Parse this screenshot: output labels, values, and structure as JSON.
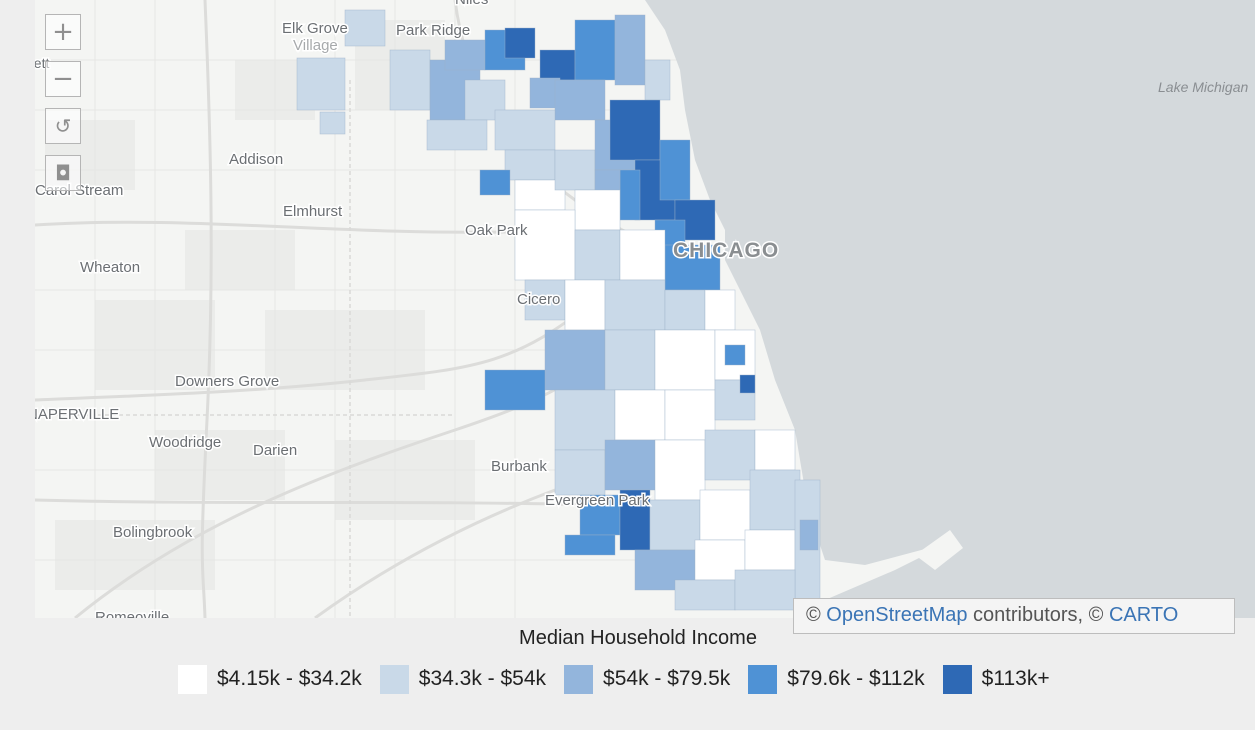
{
  "map": {
    "controls": {
      "zoom_in": "+",
      "zoom_out": "−",
      "reset": "↺",
      "locate": "◘"
    },
    "places": {
      "niles": "Niles",
      "elk_grove": "Elk Grove",
      "village": "Village",
      "park_ridge": "Park Ridge",
      "addison": "Addison",
      "carol_stream": "Carol Stream",
      "elmhurst": "Elmhurst",
      "oak_park": "Oak Park",
      "chicago": "CHICAGO",
      "wheaton": "Wheaton",
      "cicero": "Cicero",
      "downers_grove": "Downers Grove",
      "naperville": "NAPERVILLE",
      "woodridge": "Woodridge",
      "darien": "Darien",
      "burbank": "Burbank",
      "evergreen_park": "Evergreen Park",
      "bolingbrook": "Bolingbrook",
      "romeoville": "Romeoville",
      "bartlett": "Bartlett",
      "lake_michigan": "Lake Michigan"
    },
    "attribution": {
      "prefix": "© ",
      "osm": "OpenStreetMap",
      "middle": " contributors, © ",
      "carto": "CARTO"
    }
  },
  "legend": {
    "title": "Median Household Income",
    "items": [
      {
        "label": "$4.15k - $34.2k",
        "color": "#ffffff"
      },
      {
        "label": "$34.3k - $54k",
        "color": "#c9d9e8"
      },
      {
        "label": "$54k - $79.5k",
        "color": "#93b5dc"
      },
      {
        "label": "$79.6k - $112k",
        "color": "#4f92d5"
      },
      {
        "label": "$113k+",
        "color": "#2e69b5"
      }
    ]
  }
}
